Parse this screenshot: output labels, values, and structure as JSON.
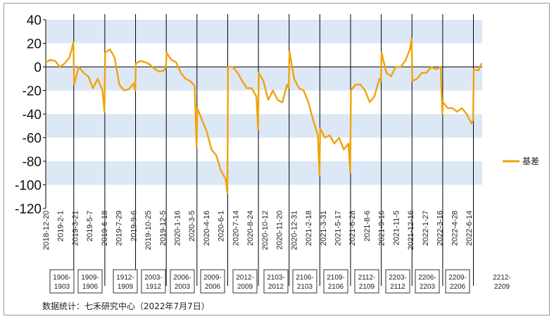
{
  "chart_data": {
    "type": "line",
    "title": "",
    "xlabel": "",
    "ylabel": "",
    "ylim": [
      -120,
      40
    ],
    "y_ticks": [
      40,
      20,
      0,
      -20,
      -40,
      -60,
      -80,
      -100,
      -120
    ],
    "banding": "alternating light blue horizontal bands",
    "x_tick_labels": [
      "2018-12-20",
      "2019-2-1",
      "2019-3-21",
      "2019-5-7",
      "2019-6-18",
      "2019-7-29",
      "2019-9-6",
      "2019-10-25",
      "2019-12-5",
      "2020-1-16",
      "2020-3-5",
      "2020-4-16",
      "2020-6-1",
      "2020-7-14",
      "2020-8-24",
      "2020-10-12",
      "2020-11-20",
      "2020-12-31",
      "2021-2-18",
      "2021-3-31",
      "2021-5-17",
      "2021-6-28",
      "2021-8-6",
      "2021-9-16",
      "2021-11-5",
      "2021-12-16",
      "2022-1-27",
      "2022-3-16",
      "2022-4-28",
      "2022-6-14"
    ],
    "contract_labels": [
      "1906-1903",
      "1909-1906",
      "1912-1909",
      "2003-1912",
      "2006-2003",
      "2009-2006",
      "2012-2009",
      "2103-2012",
      "2106-2103",
      "2109-2106",
      "2112-2109",
      "2203-2112",
      "2206-2203",
      "2209-2206",
      "2212-2209"
    ],
    "roll_dates": [
      "2019-3-13",
      "2019-6-13",
      "2019-9-12",
      "2019-12-12",
      "2020-3-12",
      "2020-6-11",
      "2020-9-10",
      "2020-12-10",
      "2021-3-11",
      "2021-6-10",
      "2021-9-9",
      "2021-12-9",
      "2022-3-10",
      "2022-6-9"
    ],
    "legend_position": "right",
    "series": [
      {
        "name": "基差",
        "color": "#f0a30a",
        "points": [
          [
            "2018-12-20",
            4
          ],
          [
            "2019-1-3",
            6
          ],
          [
            "2019-1-17",
            5
          ],
          [
            "2019-1-31",
            0
          ],
          [
            "2019-2-14",
            3
          ],
          [
            "2019-2-28",
            8
          ],
          [
            "2019-3-7",
            15
          ],
          [
            "2019-3-12",
            21
          ],
          [
            "2019-3-14",
            -15
          ],
          [
            "2019-3-28",
            0
          ],
          [
            "2019-4-11",
            -5
          ],
          [
            "2019-4-25",
            -8
          ],
          [
            "2019-5-9",
            -18
          ],
          [
            "2019-5-23",
            -10
          ],
          [
            "2019-6-6",
            -20
          ],
          [
            "2019-6-12",
            -38
          ],
          [
            "2019-6-14",
            12
          ],
          [
            "2019-6-28",
            15
          ],
          [
            "2019-7-12",
            8
          ],
          [
            "2019-7-26",
            -15
          ],
          [
            "2019-8-9",
            -20
          ],
          [
            "2019-8-23",
            -19
          ],
          [
            "2019-9-6",
            -14
          ],
          [
            "2019-9-11",
            -20
          ],
          [
            "2019-9-13",
            3
          ],
          [
            "2019-9-27",
            5
          ],
          [
            "2019-10-11",
            4
          ],
          [
            "2019-10-25",
            2
          ],
          [
            "2019-11-8",
            -2
          ],
          [
            "2019-11-22",
            -4
          ],
          [
            "2019-12-6",
            -3
          ],
          [
            "2019-12-11",
            0
          ],
          [
            "2019-12-13",
            12
          ],
          [
            "2019-12-27",
            6
          ],
          [
            "2020-1-10",
            4
          ],
          [
            "2020-1-24",
            -5
          ],
          [
            "2020-2-7",
            -10
          ],
          [
            "2020-2-21",
            -12
          ],
          [
            "2020-3-5",
            -16
          ],
          [
            "2020-3-11",
            -68
          ],
          [
            "2020-3-13",
            -35
          ],
          [
            "2020-3-27",
            -45
          ],
          [
            "2020-4-10",
            -55
          ],
          [
            "2020-4-24",
            -70
          ],
          [
            "2020-5-8",
            -75
          ],
          [
            "2020-5-22",
            -88
          ],
          [
            "2020-6-5",
            -95
          ],
          [
            "2020-6-10",
            -107
          ],
          [
            "2020-6-12",
            0
          ],
          [
            "2020-6-26",
            0
          ],
          [
            "2020-7-10",
            -5
          ],
          [
            "2020-7-24",
            -12
          ],
          [
            "2020-8-7",
            -18
          ],
          [
            "2020-8-21",
            -18
          ],
          [
            "2020-9-4",
            -25
          ],
          [
            "2020-9-9",
            -53
          ],
          [
            "2020-9-11",
            -5
          ],
          [
            "2020-9-25",
            -12
          ],
          [
            "2020-10-9",
            -28
          ],
          [
            "2020-10-23",
            -20
          ],
          [
            "2020-11-6",
            -28
          ],
          [
            "2020-11-20",
            -30
          ],
          [
            "2020-12-4",
            -15
          ],
          [
            "2020-12-9",
            -18
          ],
          [
            "2020-12-11",
            13
          ],
          [
            "2020-12-25",
            -10
          ],
          [
            "2021-1-8",
            -18
          ],
          [
            "2021-1-22",
            -20
          ],
          [
            "2021-2-5",
            -30
          ],
          [
            "2021-2-19",
            -45
          ],
          [
            "2021-3-5",
            -58
          ],
          [
            "2021-3-10",
            -92
          ],
          [
            "2021-3-12",
            -52
          ],
          [
            "2021-3-26",
            -60
          ],
          [
            "2021-4-9",
            -58
          ],
          [
            "2021-4-23",
            -65
          ],
          [
            "2021-5-7",
            -60
          ],
          [
            "2021-5-21",
            -70
          ],
          [
            "2021-6-4",
            -65
          ],
          [
            "2021-6-9",
            -90
          ],
          [
            "2021-6-11",
            -20
          ],
          [
            "2021-6-25",
            -15
          ],
          [
            "2021-7-9",
            -15
          ],
          [
            "2021-7-23",
            -20
          ],
          [
            "2021-8-6",
            -30
          ],
          [
            "2021-8-20",
            -25
          ],
          [
            "2021-9-3",
            -10
          ],
          [
            "2021-9-8",
            -12
          ],
          [
            "2021-9-10",
            12
          ],
          [
            "2021-9-24",
            -5
          ],
          [
            "2021-10-8",
            -8
          ],
          [
            "2021-10-22",
            0
          ],
          [
            "2021-11-5",
            0
          ],
          [
            "2021-11-19",
            5
          ],
          [
            "2021-12-3",
            15
          ],
          [
            "2021-12-8",
            24
          ],
          [
            "2021-12-10",
            -12
          ],
          [
            "2021-12-24",
            -10
          ],
          [
            "2022-1-7",
            -5
          ],
          [
            "2022-1-21",
            -5
          ],
          [
            "2022-2-4",
            0
          ],
          [
            "2022-2-18",
            -2
          ],
          [
            "2022-3-4",
            0
          ],
          [
            "2022-3-9",
            -40
          ],
          [
            "2022-3-11",
            -30
          ],
          [
            "2022-3-25",
            -35
          ],
          [
            "2022-4-8",
            -35
          ],
          [
            "2022-4-22",
            -38
          ],
          [
            "2022-5-6",
            -35
          ],
          [
            "2022-5-20",
            -40
          ],
          [
            "2022-6-3",
            -48
          ],
          [
            "2022-6-8",
            -45
          ],
          [
            "2022-6-10",
            -2
          ],
          [
            "2022-6-24",
            -3
          ],
          [
            "2022-7-1",
            2
          ],
          [
            "2022-7-5",
            3
          ]
        ]
      }
    ]
  },
  "source_note": "数据统计：七禾研究中心（2022年7月7日）"
}
